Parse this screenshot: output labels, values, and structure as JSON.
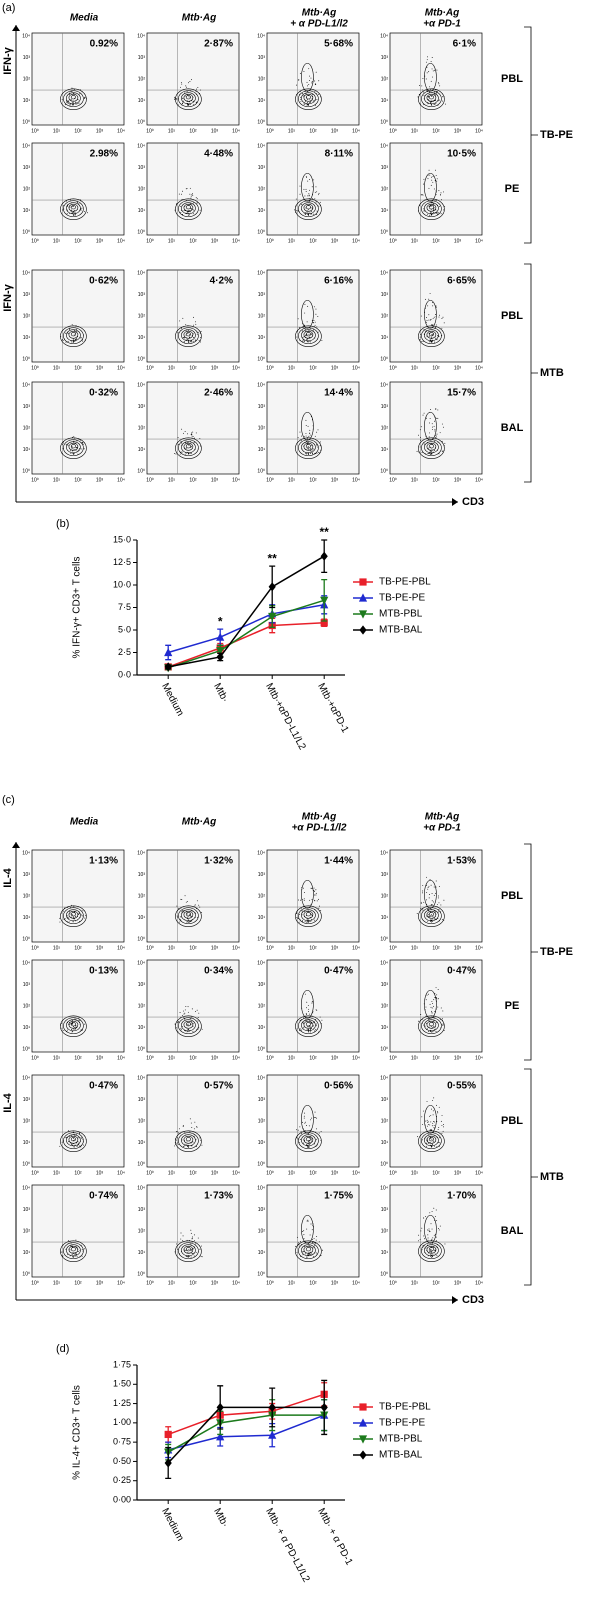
{
  "panel_a": {
    "label": "(a)",
    "columns": [
      [
        "Media"
      ],
      [
        "Mtb·Ag"
      ],
      [
        "Mtb·Ag",
        "+ α PD-L1/l2"
      ],
      [
        "Mtb·Ag",
        "+α PD-1"
      ]
    ],
    "y_axis": "IFN-γ",
    "x_axis": "CD3",
    "groups": [
      {
        "name": "TB-PE",
        "rows": [
          {
            "name": "PBL",
            "percents": [
              "0.92%",
              "2·87%",
              "5·68%",
              "6·1%"
            ]
          },
          {
            "name": "PE",
            "percents": [
              "2.98%",
              "4·48%",
              "8·11%",
              "10·5%"
            ]
          }
        ]
      },
      {
        "name": "MTB",
        "rows": [
          {
            "name": "PBL",
            "percents": [
              "0·62%",
              "4·2%",
              "6·16%",
              "6·65%"
            ]
          },
          {
            "name": "BAL",
            "percents": [
              "0·32%",
              "2·46%",
              "14·4%",
              "15·7%"
            ]
          }
        ]
      }
    ]
  },
  "panel_c": {
    "label": "(c)",
    "columns": [
      [
        "Media"
      ],
      [
        "Mtb·Ag"
      ],
      [
        "Mtb·Ag",
        "+α PD-L1/l2"
      ],
      [
        "Mtb·Ag",
        "+α PD-1"
      ]
    ],
    "y_axis": "IL-4",
    "x_axis": "CD3",
    "groups": [
      {
        "name": "TB-PE",
        "rows": [
          {
            "name": "PBL",
            "percents": [
              "1·13%",
              "1·32%",
              "1·44%",
              "1·53%"
            ]
          },
          {
            "name": "PE",
            "percents": [
              "0·13%",
              "0·34%",
              "0·47%",
              "0·47%"
            ]
          }
        ]
      },
      {
        "name": "MTB",
        "rows": [
          {
            "name": "PBL",
            "percents": [
              "0·47%",
              "0·57%",
              "0·56%",
              "0·55%"
            ]
          },
          {
            "name": "BAL",
            "percents": [
              "0·74%",
              "1·73%",
              "1·75%",
              "1·70%"
            ]
          }
        ]
      }
    ]
  },
  "flow_ticks": [
    "10⁰",
    "10¹",
    "10²",
    "10³",
    "10⁴"
  ],
  "chart_data": [
    {
      "type": "line",
      "label": "(b)",
      "y_label": "% IFN-γ+ CD3+ T cells",
      "categories": [
        "Medium",
        "Mtb·",
        "Mtb·+αPD-L1/L2",
        "Mtb·+αPD-1"
      ],
      "annotations": [
        null,
        "*",
        "**",
        "**"
      ],
      "ylim": [
        0,
        15
      ],
      "yticks": [
        {
          "value": 0,
          "label": "0·0"
        },
        {
          "value": 2.5,
          "label": "2·5"
        },
        {
          "value": 5,
          "label": "5·0"
        },
        {
          "value": 7.5,
          "label": "7·5"
        },
        {
          "value": 10,
          "label": "10·0"
        },
        {
          "value": 12.5,
          "label": "12·5"
        },
        {
          "value": 15,
          "label": "15·0"
        }
      ],
      "legend": "right",
      "series": [
        {
          "name": "TB-PE-PBL",
          "color": "#e8202a",
          "marker": "square",
          "values": [
            0.9,
            3.0,
            5.5,
            5.8
          ],
          "errors": [
            0.2,
            0.5,
            0.8,
            0.4
          ]
        },
        {
          "name": "TB-PE-PE",
          "color": "#1f2ad0",
          "marker": "triangle-up",
          "values": [
            2.5,
            4.2,
            6.8,
            7.8
          ],
          "errors": [
            0.8,
            0.9,
            1.0,
            1.0
          ]
        },
        {
          "name": "MTB-PBL",
          "color": "#1c7a1c",
          "marker": "triangle-down",
          "values": [
            0.8,
            2.7,
            6.5,
            8.3
          ],
          "errors": [
            0.2,
            0.6,
            1.2,
            2.3
          ]
        },
        {
          "name": "MTB-BAL",
          "color": "#000000",
          "marker": "diamond",
          "values": [
            0.9,
            2.0,
            9.8,
            13.2
          ],
          "errors": [
            0.2,
            0.4,
            2.3,
            1.8
          ]
        }
      ]
    },
    {
      "type": "line",
      "label": "(d)",
      "y_label": "% IL-4+ CD3+ T cells",
      "categories": [
        "Medium",
        "Mtb·",
        "Mtb· + α PD-L1/L2",
        "Mtb· + α PD-1"
      ],
      "ylim": [
        0,
        1.75
      ],
      "yticks": [
        {
          "value": 0,
          "label": "0·00"
        },
        {
          "value": 0.25,
          "label": "0·25"
        },
        {
          "value": 0.5,
          "label": "0·50"
        },
        {
          "value": 0.75,
          "label": "0·75"
        },
        {
          "value": 1,
          "label": "1·00"
        },
        {
          "value": 1.25,
          "label": "1·25"
        },
        {
          "value": 1.5,
          "label": "1·50"
        },
        {
          "value": 1.75,
          "label": "1·75"
        }
      ],
      "legend": "right",
      "series": [
        {
          "name": "TB-PE-PBL",
          "color": "#e8202a",
          "marker": "square",
          "values": [
            0.85,
            1.1,
            1.15,
            1.37
          ],
          "errors": [
            0.1,
            0.1,
            0.1,
            0.15
          ]
        },
        {
          "name": "TB-PE-PE",
          "color": "#1f2ad0",
          "marker": "triangle-up",
          "values": [
            0.65,
            0.82,
            0.84,
            1.1
          ],
          "errors": [
            0.1,
            0.12,
            0.15,
            0.2
          ]
        },
        {
          "name": "MTB-PBL",
          "color": "#1c7a1c",
          "marker": "triangle-down",
          "values": [
            0.62,
            1.0,
            1.1,
            1.1
          ],
          "errors": [
            0.1,
            0.15,
            0.2,
            0.2
          ]
        },
        {
          "name": "MTB-BAL",
          "color": "#000000",
          "marker": "diamond",
          "values": [
            0.48,
            1.2,
            1.2,
            1.2
          ],
          "errors": [
            0.2,
            0.28,
            0.25,
            0.35
          ]
        }
      ]
    }
  ]
}
